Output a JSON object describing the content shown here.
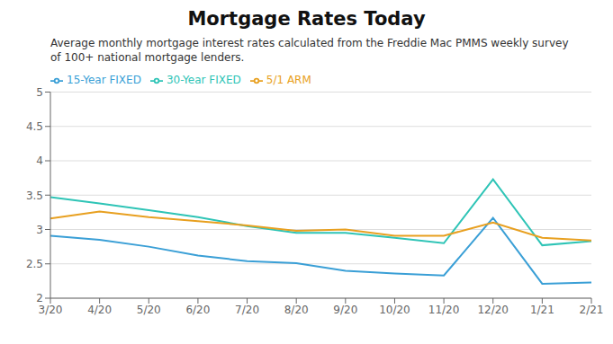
{
  "chart_data": {
    "type": "line",
    "title": "Mortgage Rates Today",
    "subtitle": "Average monthly mortgage interest rates calculated from the Freddie Mac PMMS weekly survey\nof 100+ national mortgage lenders.",
    "categories": [
      "3/20",
      "4/20",
      "5/20",
      "6/20",
      "7/20",
      "8/20",
      "9/20",
      "10/20",
      "11/20",
      "12/20",
      "1/21",
      "2/21"
    ],
    "series": [
      {
        "name": "30-Year FIXED",
        "color": "#2ec4b6",
        "values": [
          3.47,
          3.38,
          3.28,
          3.18,
          3.05,
          2.95,
          2.95,
          2.88,
          2.8,
          3.73,
          2.77,
          2.83
        ]
      },
      {
        "name": "15-Year FIXED",
        "color": "#3a9fd6",
        "values": [
          2.91,
          2.85,
          2.75,
          2.62,
          2.54,
          2.51,
          2.4,
          2.36,
          2.33,
          3.17,
          2.21,
          2.23
        ]
      },
      {
        "name": "5/1 ARM",
        "color": "#e8a020",
        "values": [
          3.16,
          3.26,
          3.18,
          3.12,
          3.06,
          2.98,
          3.0,
          2.91,
          2.91,
          3.1,
          2.88,
          2.84
        ]
      }
    ],
    "ylim": [
      2.0,
      5.0
    ],
    "yticks": [
      2,
      2.5,
      3,
      3.5,
      4,
      4.5,
      5
    ],
    "grid": true,
    "legend": "top"
  }
}
